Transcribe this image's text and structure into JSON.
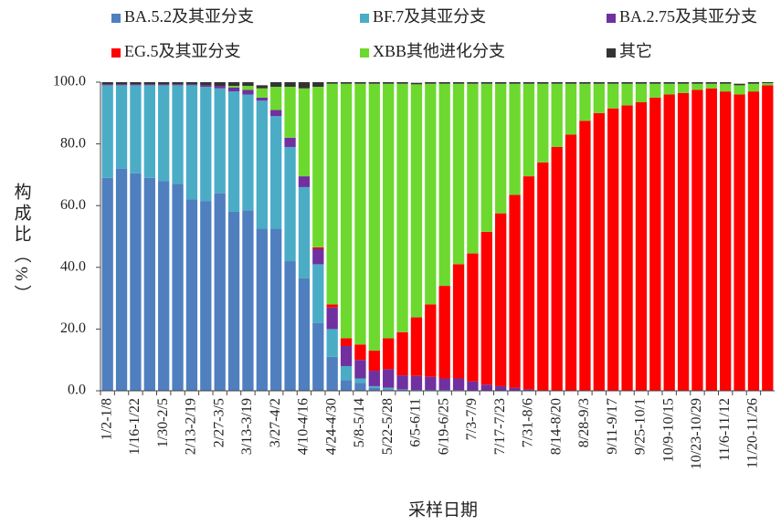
{
  "chart_data": {
    "type": "stacked_bar",
    "xlabel": "采样日期",
    "ylabel": "构成比（%）",
    "categories": [
      "1/2-1/8",
      null,
      "1/16-1/22",
      null,
      "1/30-2/5",
      null,
      "2/13-2/19",
      null,
      "2/27-3/5",
      null,
      "3/13-3/19",
      null,
      "3/27-4/2",
      null,
      "4/10-4/16",
      null,
      "4/24-4/30",
      null,
      "5/8-5/14",
      null,
      "5/22-5/28",
      null,
      "6/5-6/11",
      null,
      "6/19-6/25",
      null,
      "7/3-7/9",
      null,
      "7/17-7/23",
      null,
      "7/31-8/6",
      null,
      "8/14-8/20",
      null,
      "8/28-9/3",
      null,
      "9/11-9/17",
      null,
      "9/25-10/1",
      null,
      "10/9-10/15",
      null,
      "10/23-10/29",
      null,
      "11/6-11/12",
      null,
      "11/20-11/26",
      null
    ],
    "series": [
      {
        "name": "BA.5.2及其亚分支",
        "color": "#4f7fbf",
        "values": [
          69,
          72,
          70.5,
          69,
          68,
          67,
          62,
          61.5,
          64,
          58,
          58.5,
          52.5,
          52.5,
          42,
          36.5,
          22,
          11,
          3.5,
          2.5,
          1,
          0.5,
          0.5,
          0.3,
          0.3,
          0.3,
          0.2,
          0,
          0,
          0,
          0,
          0,
          0,
          0,
          0,
          0,
          0,
          0,
          0,
          0,
          0,
          0,
          0,
          0,
          0,
          0,
          0,
          0,
          0
        ]
      },
      {
        "name": "BF.7及其亚分支",
        "color": "#4bacc6",
        "values": [
          30,
          27,
          28.5,
          30,
          31,
          32,
          37,
          37,
          34,
          39,
          37.5,
          41.5,
          36.5,
          37,
          29.5,
          19,
          9,
          4.5,
          1.5,
          0.5,
          0.5,
          0,
          0,
          0,
          0,
          0,
          0,
          0,
          0,
          0,
          0,
          0,
          0,
          0,
          0,
          0,
          0,
          0,
          0,
          0,
          0,
          0,
          0,
          0,
          0,
          0,
          0,
          0
        ]
      },
      {
        "name": "BA.2.75及其亚分支",
        "color": "#7030a0",
        "values": [
          0.3,
          0.3,
          0.3,
          0.3,
          0.3,
          0.3,
          0.3,
          0.5,
          0.8,
          1.3,
          1.5,
          1,
          2,
          3,
          3.5,
          5,
          7,
          6.5,
          6,
          5,
          6,
          4.5,
          4.5,
          4.2,
          3.7,
          3.8,
          3,
          2,
          1.5,
          1,
          0.5,
          0,
          0,
          0,
          0,
          0,
          0,
          0,
          0,
          0,
          0,
          0,
          0,
          0,
          0,
          0,
          0,
          0
        ]
      },
      {
        "name": "EG.5及其亚分支",
        "color": "#ff0000",
        "values": [
          0,
          0,
          0,
          0,
          0,
          0,
          0,
          0,
          0,
          0,
          0,
          0,
          0,
          0,
          0,
          0.5,
          1,
          2.5,
          5,
          6.5,
          10,
          14,
          19,
          23.5,
          30,
          37,
          41.5,
          49.5,
          56,
          62.5,
          69,
          74,
          79,
          83,
          87.5,
          90,
          91.5,
          92.5,
          93.5,
          95,
          96,
          96.5,
          97.5,
          98,
          97,
          96,
          97,
          99
        ]
      },
      {
        "name": "XBB其他进化分支",
        "color": "#6dd92e",
        "values": [
          0,
          0,
          0,
          0,
          0,
          0,
          0,
          0,
          0,
          0.5,
          1.3,
          3,
          7.5,
          16.5,
          28.5,
          52,
          71.5,
          82.5,
          84.5,
          86.5,
          82.5,
          80.5,
          75.5,
          71.5,
          65.5,
          58.5,
          55,
          48,
          42,
          36,
          30,
          25.5,
          20.5,
          16.5,
          12,
          9.5,
          8,
          7,
          6,
          4.5,
          3.5,
          3,
          2,
          1.5,
          2.5,
          3,
          2.5,
          0.7
        ]
      },
      {
        "name": "其它",
        "color": "#333333",
        "values": [
          0.7,
          0.7,
          0.7,
          0.7,
          0.7,
          0.7,
          0.7,
          1,
          1.2,
          1.2,
          1.2,
          1,
          1.5,
          1.5,
          2,
          1.5,
          0.5,
          0.5,
          0.5,
          0.5,
          0.5,
          0.5,
          0.5,
          0.5,
          0.5,
          0.5,
          0.5,
          0.5,
          0.5,
          0.5,
          0.5,
          0.5,
          0.5,
          0.5,
          0.5,
          0.5,
          0.5,
          0.5,
          0.5,
          0.5,
          0.5,
          0.5,
          0.5,
          0.5,
          0.5,
          0.5,
          0.5,
          0.3
        ]
      }
    ],
    "ylim": [
      0,
      100
    ],
    "yticks": [
      {
        "value": 0,
        "label": "0.0"
      },
      {
        "value": 20,
        "label": "20.0"
      },
      {
        "value": 40,
        "label": "40.0"
      },
      {
        "value": 60,
        "label": "60.0"
      },
      {
        "value": 80,
        "label": "80.0"
      },
      {
        "value": 100,
        "label": "100.0"
      }
    ]
  }
}
